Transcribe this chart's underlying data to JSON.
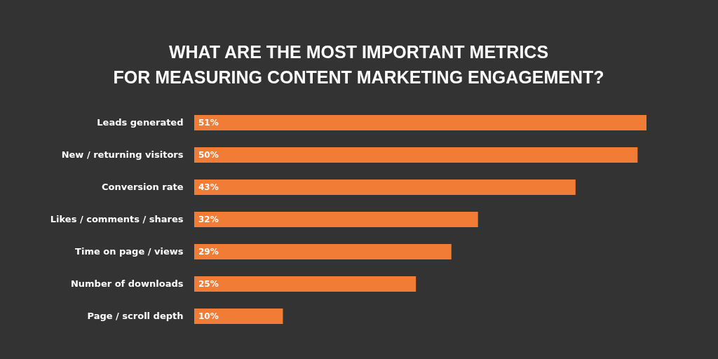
{
  "chart_data": {
    "type": "bar",
    "orientation": "horizontal",
    "title": "WHAT ARE THE MOST IMPORTANT METRICS FOR MEASURING CONTENT MARKETING ENGAGEMENT?",
    "categories": [
      "Leads generated",
      "New / returning visitors",
      "Conversion rate",
      "Likes / comments / shares",
      "Time on page / views",
      "Number of downloads",
      "Page / scroll depth"
    ],
    "values": [
      51,
      50,
      43,
      32,
      29,
      25,
      10
    ],
    "value_labels": [
      "51%",
      "50%",
      "43%",
      "32%",
      "29%",
      "25%",
      "10%"
    ],
    "color": "#f07c36"
  }
}
